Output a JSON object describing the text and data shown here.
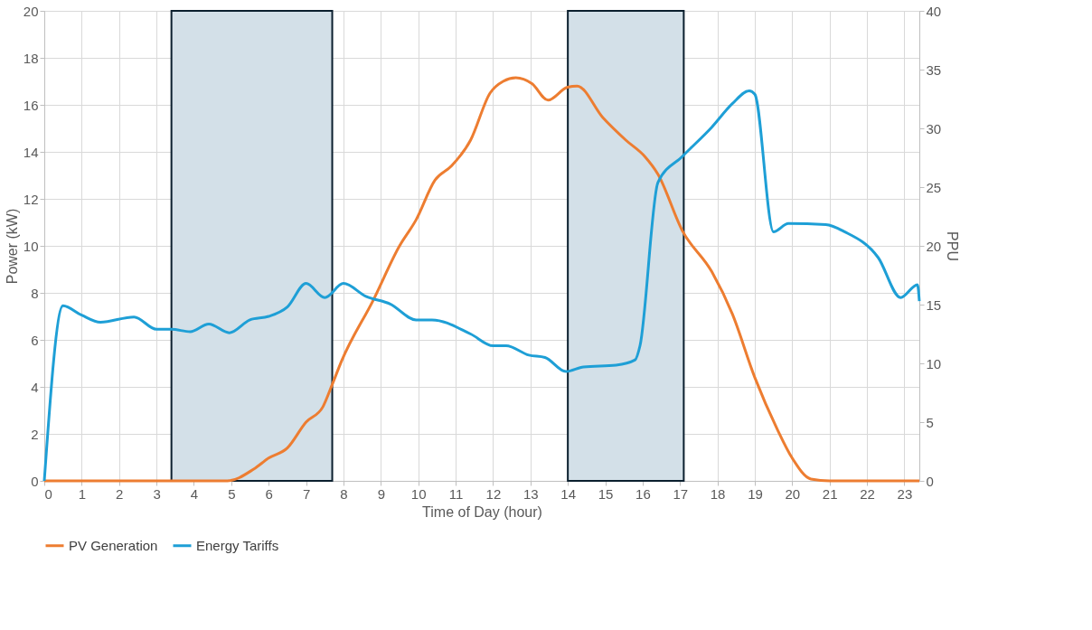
{
  "chart_data": {
    "type": "line",
    "xlabel": "Time of Day (hour)",
    "ylabel": "Power (kW)",
    "y2label": "PPU",
    "xlim": [
      0,
      23.4
    ],
    "xticks": [
      0,
      1,
      2,
      3,
      4,
      5,
      6,
      7,
      8,
      9,
      10,
      11,
      12,
      13,
      14,
      15,
      16,
      17,
      18,
      19,
      20,
      21,
      22,
      23
    ],
    "ylim": [
      0,
      20
    ],
    "yticks": [
      0,
      2,
      4,
      6,
      8,
      10,
      12,
      14,
      16,
      18,
      20
    ],
    "y2lim": [
      0,
      40
    ],
    "y2ticks": [
      0,
      5,
      10,
      15,
      20,
      25,
      30,
      35,
      40
    ],
    "grid": true,
    "legend": "bottom",
    "marker": "none",
    "line_style": "solid",
    "bands": [
      {
        "axis": "x",
        "from": 3.4,
        "to": 7.7,
        "color": "#d3e0e8"
      },
      {
        "axis": "x",
        "from": 14.0,
        "to": 17.1,
        "color": "#d3e0e8"
      }
    ],
    "series": [
      {
        "name": "PV Generation",
        "color": "#ed7d31",
        "x": [
          0,
          4.9,
          5.6,
          6.0,
          6.5,
          7.0,
          7.45,
          7.7,
          7.95,
          8.8,
          9.5,
          9.94,
          10.45,
          10.89,
          11.4,
          11.92,
          12.27,
          12.61,
          13.04,
          13.47,
          13.99,
          14.25,
          14.94,
          15.55,
          16.06,
          16.41,
          17.06,
          17.85,
          18.4,
          19.0,
          19.6,
          20.0,
          20.5,
          21.0,
          23.4
        ],
        "values": [
          0,
          0,
          0.5,
          0.97,
          1.4,
          2.5,
          3.15,
          4.1,
          5.1,
          7.7,
          10.0,
          11.1,
          12.8,
          13.4,
          14.5,
          16.5,
          17.0,
          17.15,
          16.9,
          16.2,
          16.75,
          16.8,
          15.45,
          14.5,
          13.8,
          13.05,
          10.65,
          8.9,
          7.1,
          4.4,
          2.2,
          0.97,
          0.08,
          0,
          0
        ]
      },
      {
        "name": "Energy Tariffs",
        "color": "#1e9fd6",
        "axis": "y2",
        "x": [
          0,
          0.5,
          1.0,
          1.5,
          2.4,
          3.0,
          3.4,
          3.9,
          4.4,
          4.95,
          5.5,
          6.0,
          6.5,
          7.0,
          7.5,
          8.0,
          8.6,
          9.25,
          9.94,
          10.37,
          11.4,
          12.0,
          12.35,
          12.96,
          13.39,
          13.95,
          14.42,
          15.29,
          15.8,
          15.93,
          16.41,
          17.06,
          17.85,
          18.4,
          18.85,
          19.0,
          19.5,
          19.9,
          20.9,
          21.4,
          22.3,
          22.9,
          23.35,
          23.4
        ],
        "values": [
          0,
          14.9,
          14.1,
          13.5,
          13.95,
          12.9,
          12.9,
          12.7,
          13.35,
          12.6,
          13.7,
          14.0,
          14.8,
          16.8,
          15.6,
          16.8,
          15.7,
          15.05,
          13.7,
          13.7,
          12.5,
          11.5,
          11.5,
          10.7,
          10.5,
          9.3,
          9.7,
          9.85,
          10.3,
          11.5,
          25.4,
          27.6,
          30.1,
          32.1,
          33.2,
          32.9,
          21.2,
          21.9,
          21.8,
          21.2,
          19.0,
          15.6,
          16.7,
          15.3
        ]
      }
    ]
  }
}
